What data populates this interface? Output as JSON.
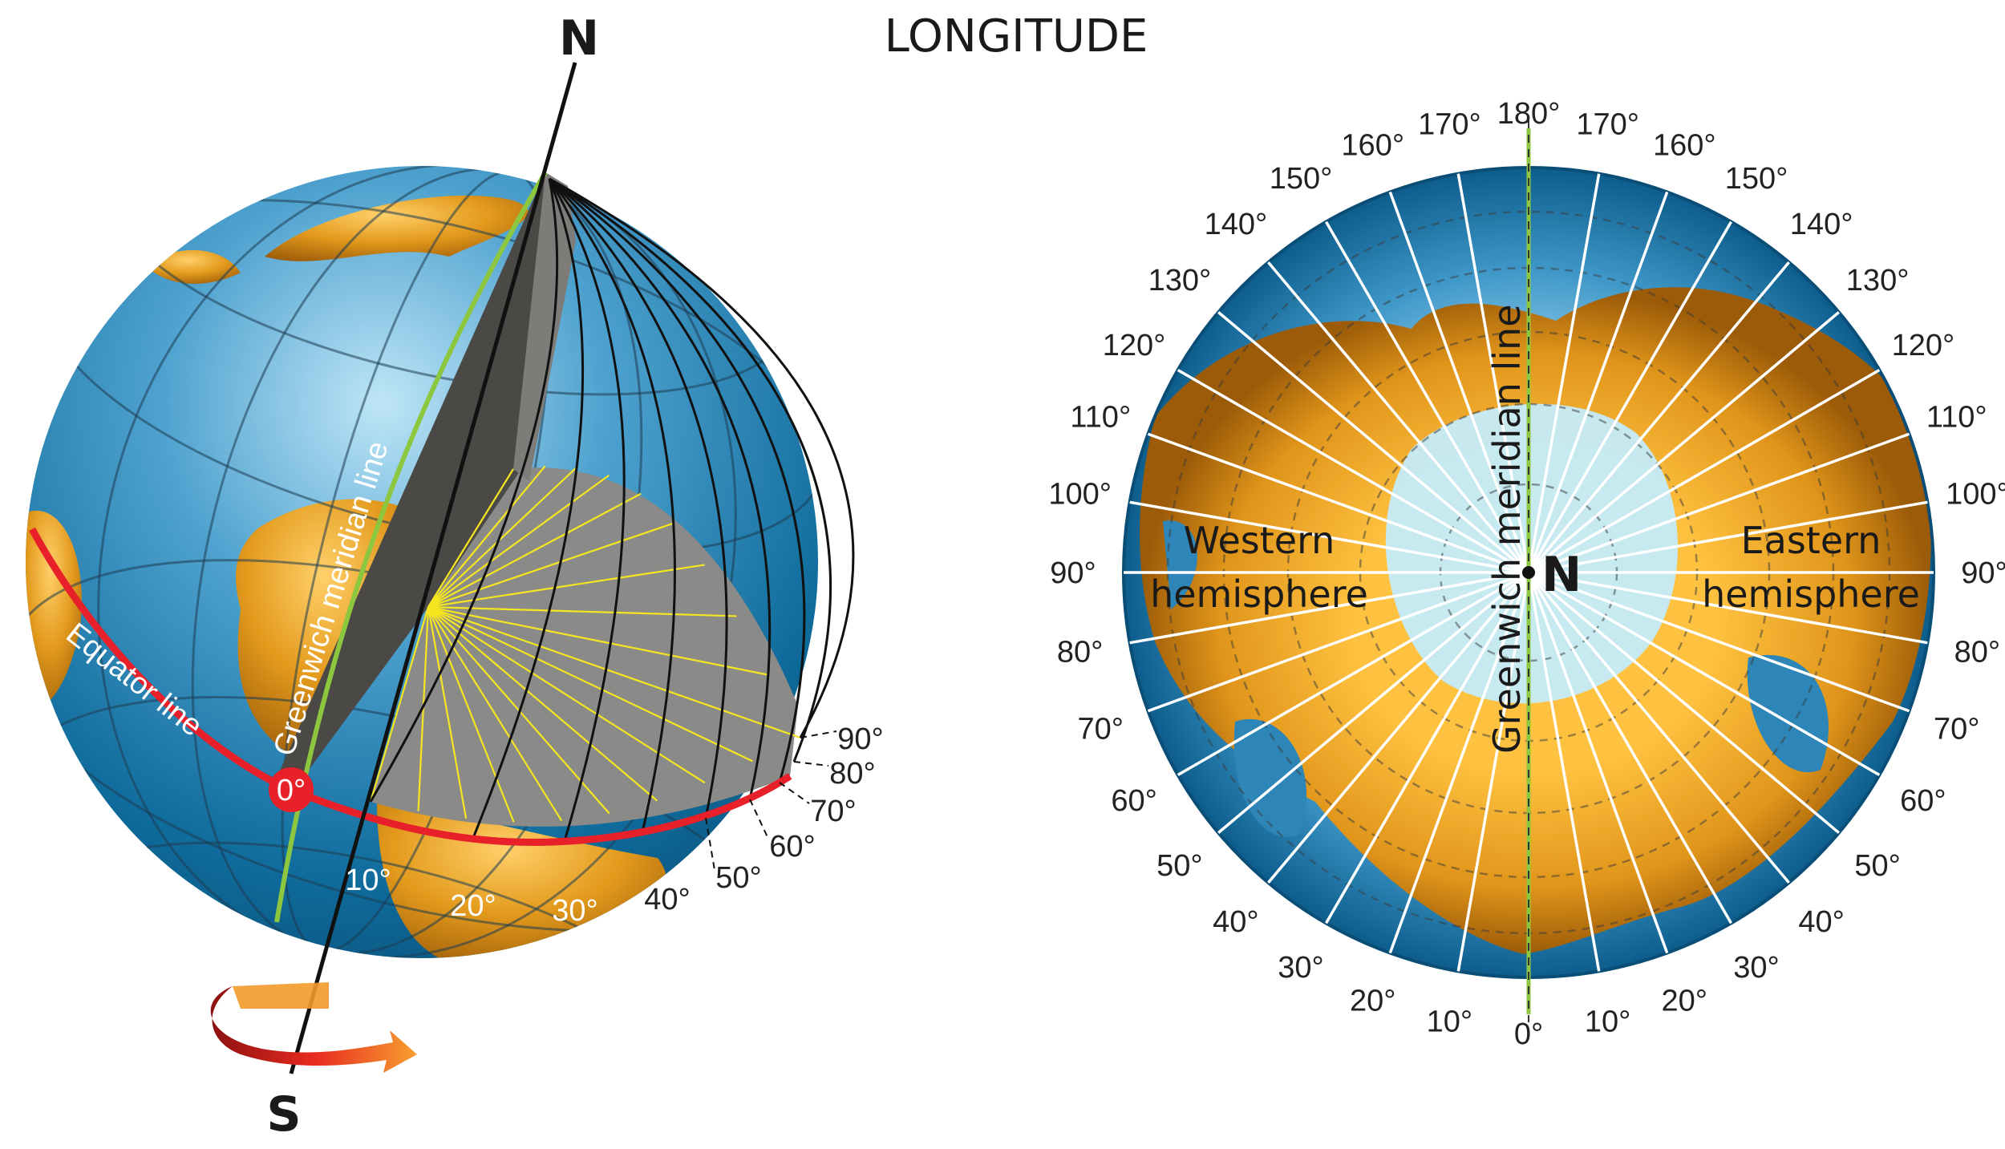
{
  "title": "LONGITUDE",
  "globe": {
    "north": "N",
    "south": "S",
    "equator_label": "Equator line",
    "greenwich_label": "Greenwich meridian line",
    "origin_label": "0°",
    "degree_labels": [
      "10°",
      "20°",
      "30°",
      "40°",
      "50°",
      "60°",
      "70°",
      "80°",
      "90°"
    ],
    "colors": {
      "ocean": "#1a74a3",
      "land": "#e39a1c",
      "equator": "#e8202a",
      "greenwich": "#8dc63f",
      "plane": "#8a8a88"
    }
  },
  "polar": {
    "north": "N",
    "greenwich_label": "Greenwich meridian line",
    "western_label_1": "Western",
    "western_label_2": "hemisphere",
    "eastern_label_1": "Eastern",
    "eastern_label_2": "hemisphere",
    "top_label": "180°",
    "bottom_label": "0°",
    "east_labels": [
      "10°",
      "20°",
      "30°",
      "40°",
      "50°",
      "60°",
      "70°",
      "80°",
      "90°",
      "100°",
      "110°",
      "120°",
      "130°",
      "140°",
      "150°",
      "160°",
      "170°"
    ],
    "west_labels": [
      "10°",
      "20°",
      "30°",
      "40°",
      "50°",
      "60°",
      "70°",
      "80°",
      "90°",
      "100°",
      "110°",
      "120°",
      "130°",
      "140°",
      "150°",
      "160°",
      "170°"
    ]
  }
}
